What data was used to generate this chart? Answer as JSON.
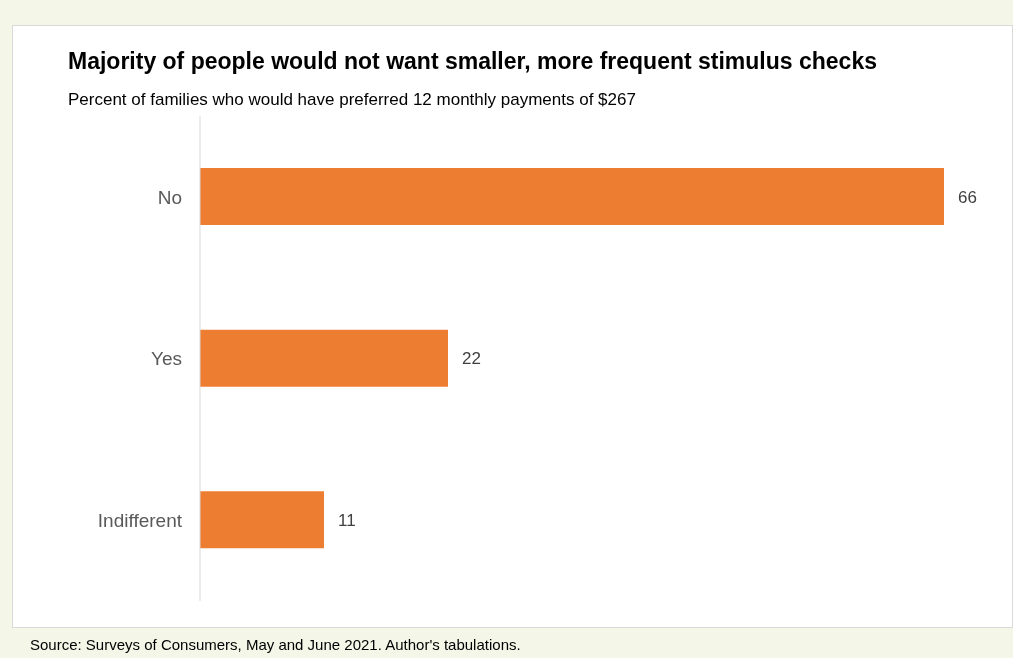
{
  "chart_data": {
    "type": "bar",
    "orientation": "horizontal",
    "title": "Majority of people would not want smaller, more frequent stimulus checks",
    "subtitle": "Percent of families who would have preferred 12 monthly payments of $267",
    "categories": [
      "No",
      "Yes",
      "Indifferent"
    ],
    "values": [
      66,
      22,
      11
    ],
    "color": "#ed7d31",
    "tick_labels": "y",
    "data_labels": true,
    "annotations": [
      "Source: Surveys of Consumers, May and June 2021. Author's tabulations."
    ]
  }
}
